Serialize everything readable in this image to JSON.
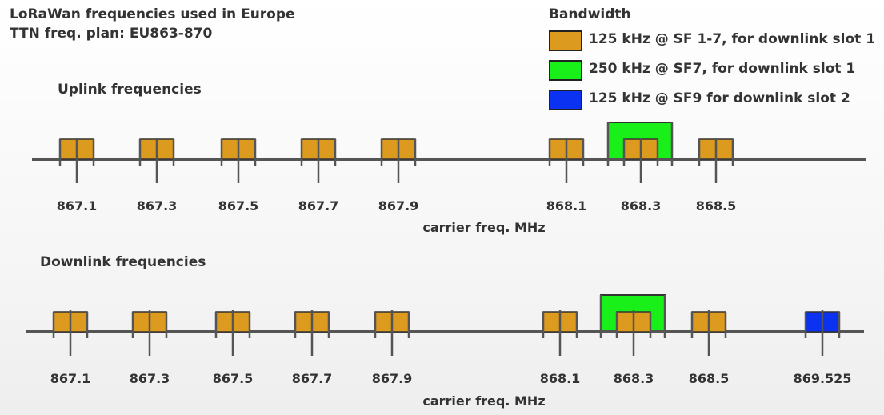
{
  "title": {
    "line1": "LoRaWan frequencies used in Europe",
    "line2": "TTN freq. plan: EU863-870"
  },
  "legend": {
    "heading": "Bandwidth",
    "items": [
      {
        "label": "125 kHz @ SF 1-7, for downlink slot 1",
        "color": "#dc9a1e"
      },
      {
        "label": "250 kHz @ SF7, for downlink slot 1",
        "color": "#19f019"
      },
      {
        "label": "125 kHz @ SF9 for downlink slot 2",
        "color": "#0a32f0"
      }
    ]
  },
  "colors": {
    "orange": "#dc9a1e",
    "green": "#19f019",
    "blue": "#0a32f0",
    "axis": "#555555",
    "border": "#333333"
  },
  "uplink": {
    "heading": "Uplink frequencies",
    "axis_label": "carrier freq. MHz",
    "channels": [
      {
        "freq": "867.1",
        "bandwidth": "125"
      },
      {
        "freq": "867.3",
        "bandwidth": "125"
      },
      {
        "freq": "867.5",
        "bandwidth": "125"
      },
      {
        "freq": "867.7",
        "bandwidth": "125"
      },
      {
        "freq": "867.9",
        "bandwidth": "125"
      },
      {
        "freq": "868.1",
        "bandwidth": "125"
      },
      {
        "freq": "868.3",
        "bandwidth": "125",
        "wide": "250"
      },
      {
        "freq": "868.5",
        "bandwidth": "125"
      }
    ]
  },
  "downlink": {
    "heading": "Downlink frequencies",
    "axis_label": "carrier freq. MHz",
    "channels": [
      {
        "freq": "867.1",
        "bandwidth": "125"
      },
      {
        "freq": "867.3",
        "bandwidth": "125"
      },
      {
        "freq": "867.5",
        "bandwidth": "125"
      },
      {
        "freq": "867.7",
        "bandwidth": "125"
      },
      {
        "freq": "867.9",
        "bandwidth": "125"
      },
      {
        "freq": "868.1",
        "bandwidth": "125"
      },
      {
        "freq": "868.3",
        "bandwidth": "125",
        "wide": "250"
      },
      {
        "freq": "868.5",
        "bandwidth": "125"
      },
      {
        "freq": "869.525",
        "bandwidth": "125",
        "slot2": true
      }
    ]
  }
}
